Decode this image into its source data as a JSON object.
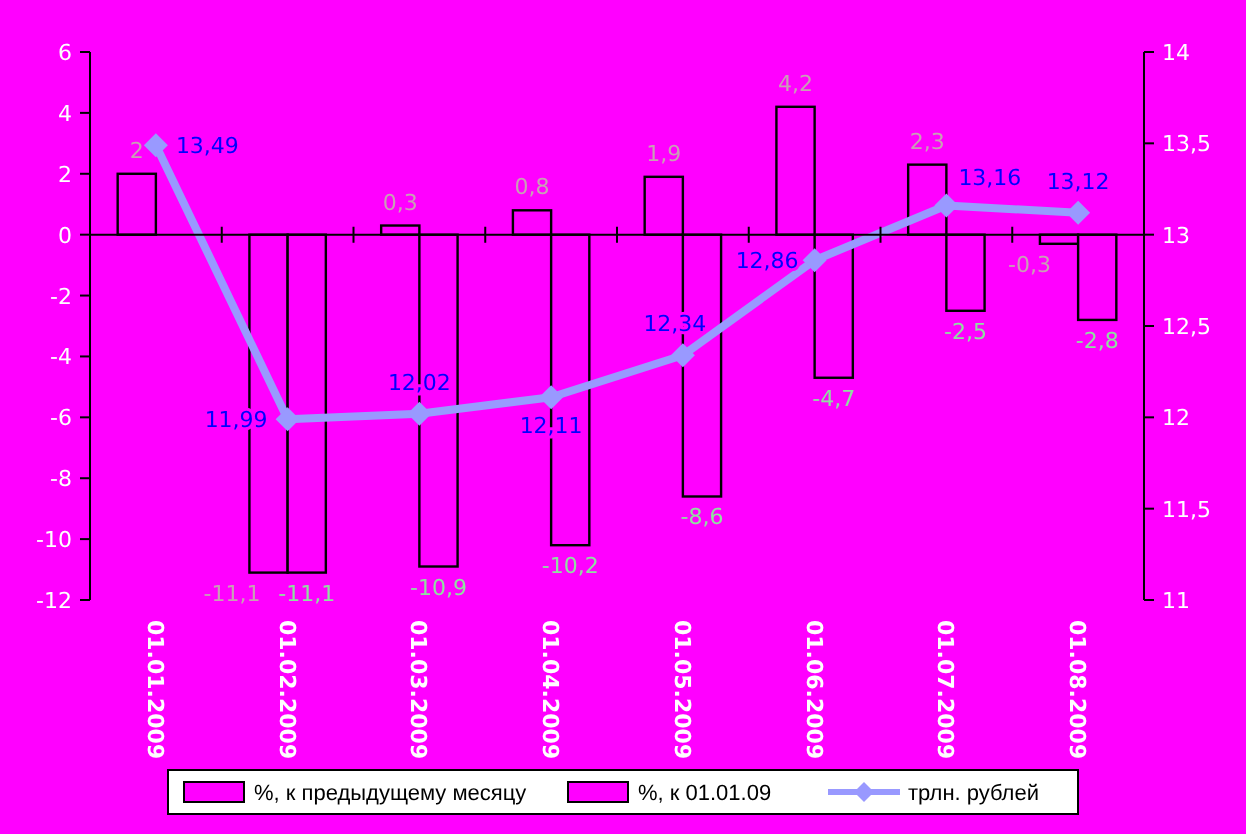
{
  "chart_data": {
    "type": "bar",
    "categories": [
      "01.01.2009",
      "01.02.2009",
      "01.03.2009",
      "01.04.2009",
      "01.05.2009",
      "01.06.2009",
      "01.07.2009",
      "01.08.2009"
    ],
    "series": [
      {
        "name": "%, к предыдущему месяцу",
        "color": "#ff00ff",
        "values": [
          2,
          -11.1,
          0.3,
          0.8,
          1.9,
          4.2,
          2.3,
          -0.3
        ],
        "value_labels": [
          "2",
          "-11,1",
          "0,3",
          "0,8",
          "1,9",
          "4,2",
          "2,3",
          "-0,3"
        ]
      },
      {
        "name": "%, к  01.01.09",
        "color": "#ff00ff",
        "values": [
          null,
          -11.1,
          -10.9,
          -10.2,
          -8.6,
          -4.7,
          -2.5,
          -2.8
        ],
        "value_labels": [
          null,
          "-11,1",
          "-10,9",
          "-10,2",
          "-8,6",
          "-4,7",
          "-2,5",
          "-2,8"
        ]
      },
      {
        "name": "трлн. рублей",
        "type": "line",
        "axis": "y2",
        "color": "#9999ff",
        "marker": "diamond",
        "values": [
          13.49,
          11.99,
          12.02,
          12.11,
          12.34,
          12.86,
          13.16,
          13.12
        ],
        "value_labels": [
          "13,49",
          "11,99",
          "12,02",
          "12,11",
          "12,34",
          "12,86",
          "13,16",
          "13,12"
        ]
      }
    ],
    "ylim": [
      -12,
      6
    ],
    "yticks": [
      -12,
      -10,
      -8,
      -6,
      -4,
      -2,
      0,
      2,
      4,
      6
    ],
    "y2lim": [
      11,
      14
    ],
    "y2ticks": [
      11,
      {
        "value": 11.5,
        "label": "11,5"
      },
      12,
      {
        "value": 12.5,
        "label": "12,5"
      },
      13,
      {
        "value": 13.5,
        "label": "13,5"
      },
      14
    ],
    "legend": "bottom"
  }
}
